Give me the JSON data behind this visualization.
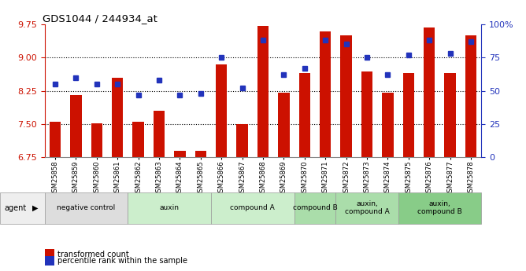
{
  "title": "GDS1044 / 244934_at",
  "samples": [
    "GSM25858",
    "GSM25859",
    "GSM25860",
    "GSM25861",
    "GSM25862",
    "GSM25863",
    "GSM25864",
    "GSM25865",
    "GSM25866",
    "GSM25867",
    "GSM25868",
    "GSM25869",
    "GSM25870",
    "GSM25871",
    "GSM25872",
    "GSM25873",
    "GSM25874",
    "GSM25875",
    "GSM25876",
    "GSM25877",
    "GSM25878"
  ],
  "bar_values": [
    7.55,
    8.15,
    7.52,
    8.55,
    7.55,
    7.8,
    6.9,
    6.9,
    8.85,
    7.5,
    9.72,
    8.2,
    8.65,
    9.6,
    9.5,
    8.68,
    8.2,
    8.65,
    9.68,
    8.65,
    9.5
  ],
  "dot_values": [
    55,
    60,
    55,
    55,
    47,
    58,
    47,
    48,
    75,
    52,
    88,
    62,
    67,
    88,
    85,
    75,
    62,
    77,
    88,
    78,
    87
  ],
  "ylim_left": [
    6.75,
    9.75
  ],
  "ylim_right": [
    0,
    100
  ],
  "yticks_left": [
    6.75,
    7.5,
    8.25,
    9.0,
    9.75
  ],
  "yticks_right": [
    0,
    25,
    50,
    75,
    100
  ],
  "bar_color": "#cc1100",
  "dot_color": "#2233bb",
  "groups": [
    {
      "label": "negative control",
      "start": 0,
      "end": 4,
      "color": "#dddddd"
    },
    {
      "label": "auxin",
      "start": 4,
      "end": 8,
      "color": "#cceecc"
    },
    {
      "label": "compound A",
      "start": 8,
      "end": 12,
      "color": "#cceecc"
    },
    {
      "label": "compound B",
      "start": 12,
      "end": 14,
      "color": "#aaddaa"
    },
    {
      "label": "auxin,\ncompound A",
      "start": 14,
      "end": 17,
      "color": "#aaddaa"
    },
    {
      "label": "auxin,\ncompound B",
      "start": 17,
      "end": 21,
      "color": "#88cc88"
    }
  ],
  "legend_bar": "transformed count",
  "legend_dot": "percentile rank within the sample",
  "background_color": "#ffffff"
}
